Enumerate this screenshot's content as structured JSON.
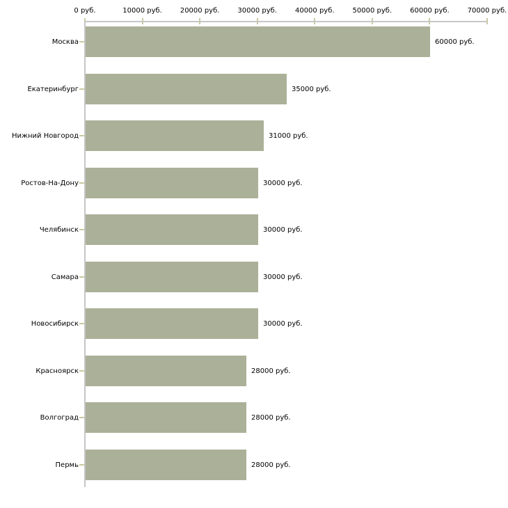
{
  "chart_data": {
    "type": "bar",
    "orientation": "horizontal",
    "title": "",
    "xlabel": "",
    "ylabel": "",
    "categories": [
      "Москва",
      "Екатеринбург",
      "Нижний Новгород",
      "Ростов-На-Дону",
      "Челябинск",
      "Самара",
      "Новосибирск",
      "Красноярск",
      "Волгоград",
      "Пермь"
    ],
    "values": [
      60000,
      35000,
      31000,
      30000,
      30000,
      30000,
      30000,
      28000,
      28000,
      28000
    ],
    "value_labels": [
      "60000 руб.",
      "35000 руб.",
      "31000 руб.",
      "30000 руб.",
      "30000 руб.",
      "30000 руб.",
      "30000 руб.",
      "28000 руб.",
      "28000 руб.",
      "28000 руб."
    ],
    "x_ticks": [
      0,
      10000,
      20000,
      30000,
      40000,
      50000,
      60000,
      70000
    ],
    "x_tick_labels": [
      "0 руб.",
      "10000 руб.",
      "20000 руб.",
      "30000 руб.",
      "40000 руб.",
      "50000 руб.",
      "60000 руб.",
      "70000 руб."
    ],
    "xlim": [
      0,
      70000
    ],
    "grid": false,
    "legend": null,
    "colors": {
      "bar": "#abb098",
      "axis_line": "#c6c6c6",
      "tick": "#c9c9a0",
      "text": "#000000",
      "background": "#ffffff"
    }
  }
}
